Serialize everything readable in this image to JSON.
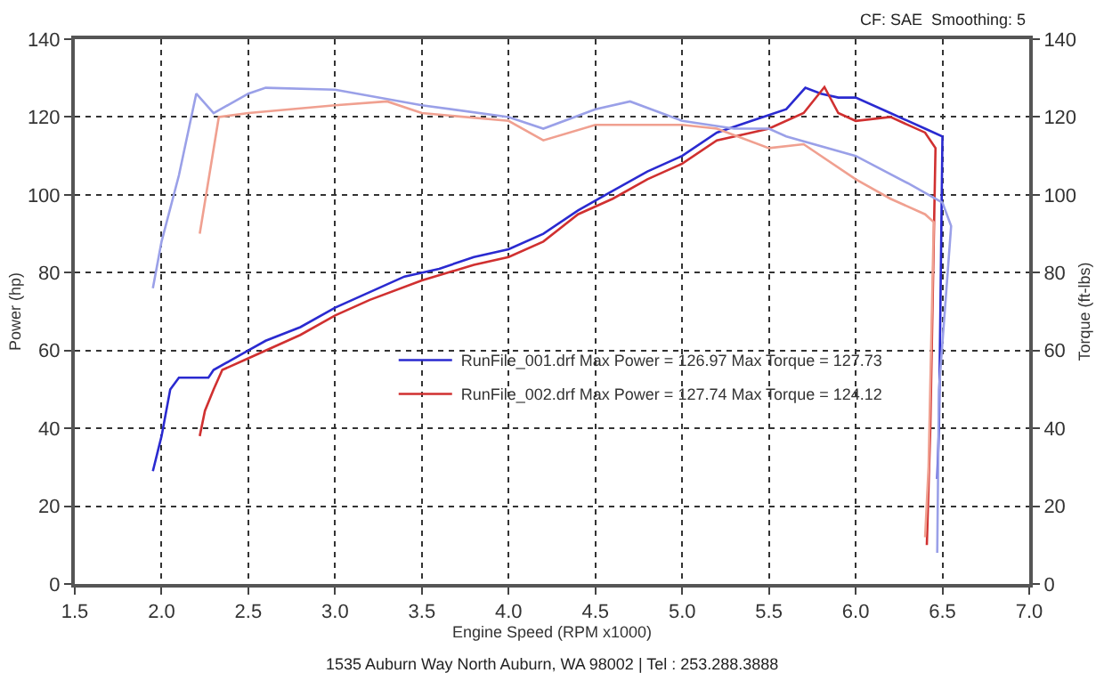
{
  "chart_data": {
    "type": "line",
    "xlabel": "Engine Speed (RPM x1000)",
    "ylabel": "Power (hp)",
    "y2label": "Torque (ft-lbs)",
    "annotations": [
      "CF: SAE  Smoothing: 5",
      "1535 Auburn Way North Auburn, WA 98002 | Tel : 253.288.3888"
    ],
    "xlim": [
      1.5,
      7.0
    ],
    "xticks": [
      {
        "value": 1.5,
        "label": "1.5"
      },
      {
        "value": 2,
        "label": "2.0"
      },
      {
        "value": 2.5,
        "label": "2.5"
      },
      {
        "value": 3,
        "label": "3.0"
      },
      {
        "value": 3.5,
        "label": "3.5"
      },
      {
        "value": 4,
        "label": "4.0"
      },
      {
        "value": 4.5,
        "label": "4.5"
      },
      {
        "value": 5,
        "label": "5.0"
      },
      {
        "value": 5.5,
        "label": "5.5"
      },
      {
        "value": 6,
        "label": "6.0"
      },
      {
        "value": 6.5,
        "label": "6.5"
      },
      {
        "value": 7,
        "label": "7.0"
      }
    ],
    "ylim": [
      0,
      140
    ],
    "yticks": [
      0,
      20,
      40,
      60,
      80,
      100,
      120,
      140
    ],
    "y2lim": [
      0,
      140
    ],
    "y2ticks": [
      0,
      20,
      40,
      60,
      80,
      100,
      120,
      140
    ],
    "grid": true,
    "legend": "center",
    "marker": "none",
    "line_style": "solid",
    "series": [
      {
        "name": "RunFile_001.drf Max Power = 126.97 Max Torque = 127.73",
        "color": "#2a2ad0",
        "x": [
          1.95,
          2.0,
          2.05,
          2.1,
          2.27,
          2.3,
          2.5,
          2.6,
          2.8,
          3.0,
          3.2,
          3.4,
          3.6,
          3.8,
          4.0,
          4.2,
          4.4,
          4.6,
          4.8,
          5.0,
          5.2,
          5.4,
          5.5,
          5.6,
          5.71,
          5.8,
          5.9,
          6.0,
          6.2,
          6.4,
          6.5,
          6.48,
          6.47
        ],
        "values": [
          29,
          38,
          50,
          53,
          53,
          55,
          60,
          62.5,
          66,
          71,
          75,
          79,
          81,
          84,
          86,
          90,
          96,
          101,
          106,
          110,
          116,
          119,
          120.5,
          122,
          127.5,
          126,
          125,
          125,
          121,
          117,
          115,
          40,
          27
        ]
      },
      {
        "name": "RunFile_002.drf Max Power = 127.74 Max Torque = 124.12",
        "color": "#d03030",
        "x": [
          2.22,
          2.25,
          2.3,
          2.35,
          2.5,
          2.8,
          3.0,
          3.2,
          3.5,
          3.8,
          4.0,
          4.2,
          4.4,
          4.6,
          4.8,
          5.0,
          5.2,
          5.4,
          5.5,
          5.7,
          5.82,
          5.9,
          6.0,
          6.2,
          6.4,
          6.46,
          6.43,
          6.41
        ],
        "values": [
          38,
          44.5,
          50,
          55,
          58,
          64,
          69,
          73,
          78,
          82,
          84,
          88,
          95,
          99,
          104,
          108,
          114,
          116,
          117,
          121,
          127.7,
          121,
          119,
          120,
          116,
          112,
          40,
          10
        ]
      },
      {
        "axis": "y2",
        "color": "#9aa0e8",
        "x": [
          1.95,
          2.0,
          2.1,
          2.2,
          2.3,
          2.5,
          2.6,
          3.0,
          3.5,
          4.0,
          4.2,
          4.5,
          4.7,
          5.0,
          5.3,
          5.5,
          5.6,
          6.0,
          6.3,
          6.5,
          6.55,
          6.48,
          6.47
        ],
        "values": [
          76,
          88,
          105,
          126,
          121,
          126,
          127.5,
          127,
          123,
          120,
          117,
          122,
          124,
          119,
          117,
          117,
          115,
          110,
          103,
          98,
          92,
          50,
          8
        ]
      },
      {
        "axis": "y2",
        "color": "#f0a090",
        "x": [
          2.22,
          2.33,
          2.5,
          3.0,
          3.3,
          3.5,
          4.0,
          4.2,
          4.5,
          5.0,
          5.2,
          5.5,
          5.7,
          6.0,
          6.2,
          6.4,
          6.45,
          6.42,
          6.4
        ],
        "values": [
          90,
          120,
          121,
          123,
          124,
          121,
          119,
          114,
          118,
          118,
          117,
          112,
          113,
          104,
          99,
          95,
          93,
          30,
          12
        ]
      }
    ]
  }
}
